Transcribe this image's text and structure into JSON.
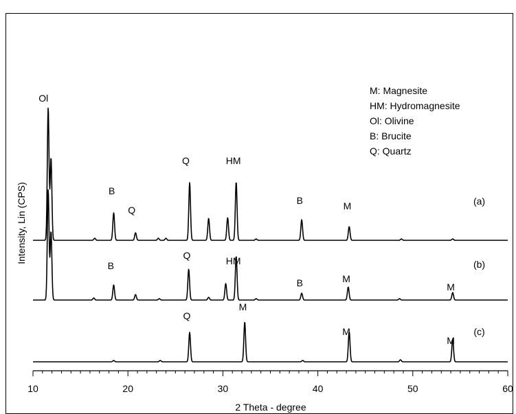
{
  "chart_data": {
    "type": "line",
    "xlabel": "2 Theta - degree",
    "ylabel": "Intensity, Lin (CPS)",
    "xlim": [
      10,
      60
    ],
    "x_ticks": [
      10,
      20,
      30,
      40,
      50,
      60
    ],
    "x_minor_step": 1,
    "y_ticks": "none",
    "grid": false,
    "legend_position": "top-right",
    "legend": [
      "M: Magnesite",
      "HM: Hydromagnesite",
      "Ol: Olivine",
      "B: Brucite",
      "Q: Quartz"
    ],
    "series": [
      {
        "name": "(a)",
        "peaks": [
          {
            "x": 11.6,
            "h": 193
          },
          {
            "x": 11.9,
            "h": 120
          },
          {
            "x": 16.5,
            "h": 3
          },
          {
            "x": 18.5,
            "h": 40
          },
          {
            "x": 20.8,
            "h": 11
          },
          {
            "x": 23.2,
            "h": 3
          },
          {
            "x": 24.0,
            "h": 3
          },
          {
            "x": 26.5,
            "h": 84
          },
          {
            "x": 28.5,
            "h": 32
          },
          {
            "x": 30.5,
            "h": 33
          },
          {
            "x": 31.4,
            "h": 85
          },
          {
            "x": 33.5,
            "h": 2
          },
          {
            "x": 38.3,
            "h": 30
          },
          {
            "x": 43.3,
            "h": 20
          },
          {
            "x": 48.8,
            "h": 2
          },
          {
            "x": 54.2,
            "h": 2
          }
        ]
      },
      {
        "name": "(b)",
        "peaks": [
          {
            "x": 11.6,
            "h": 161
          },
          {
            "x": 11.9,
            "h": 100
          },
          {
            "x": 16.4,
            "h": 3
          },
          {
            "x": 18.5,
            "h": 22
          },
          {
            "x": 20.8,
            "h": 8
          },
          {
            "x": 23.3,
            "h": 2
          },
          {
            "x": 26.4,
            "h": 45
          },
          {
            "x": 28.5,
            "h": 4
          },
          {
            "x": 30.3,
            "h": 24
          },
          {
            "x": 31.4,
            "h": 64
          },
          {
            "x": 33.5,
            "h": 2
          },
          {
            "x": 38.3,
            "h": 10
          },
          {
            "x": 43.2,
            "h": 19
          },
          {
            "x": 48.6,
            "h": 2
          },
          {
            "x": 54.2,
            "h": 11
          }
        ]
      },
      {
        "name": "(c)",
        "peaks": [
          {
            "x": 18.5,
            "h": 2
          },
          {
            "x": 23.4,
            "h": 2
          },
          {
            "x": 26.5,
            "h": 43
          },
          {
            "x": 32.3,
            "h": 58
          },
          {
            "x": 38.4,
            "h": 2
          },
          {
            "x": 43.3,
            "h": 44
          },
          {
            "x": 48.7,
            "h": 3
          },
          {
            "x": 54.2,
            "h": 33
          }
        ]
      }
    ],
    "annotations": [
      {
        "text": "Ol",
        "x": 11.1,
        "intensity_level": 392
      },
      {
        "text": "B",
        "x": 18.3,
        "intensity_level": 257
      },
      {
        "text": "Q",
        "x": 20.4,
        "intensity_level": 229
      },
      {
        "text": "Q",
        "x": 26.1,
        "intensity_level": 301
      },
      {
        "text": "HM",
        "x": 31.1,
        "intensity_level": 301
      },
      {
        "text": "B",
        "x": 38.1,
        "intensity_level": 243
      },
      {
        "text": "M",
        "x": 43.1,
        "intensity_level": 235
      },
      {
        "text": "(a)",
        "x": 57.0,
        "intensity_level": 242
      },
      {
        "text": "B",
        "x": 18.2,
        "intensity_level": 148
      },
      {
        "text": "Q",
        "x": 26.2,
        "intensity_level": 163
      },
      {
        "text": "HM",
        "x": 31.1,
        "intensity_level": 155
      },
      {
        "text": "B",
        "x": 38.1,
        "intensity_level": 123
      },
      {
        "text": "M",
        "x": 43.0,
        "intensity_level": 129
      },
      {
        "text": "M",
        "x": 54.0,
        "intensity_level": 117
      },
      {
        "text": "(b)",
        "x": 57.0,
        "intensity_level": 150
      },
      {
        "text": "Q",
        "x": 26.2,
        "intensity_level": 75
      },
      {
        "text": "M",
        "x": 32.1,
        "intensity_level": 88
      },
      {
        "text": "M",
        "x": 43.0,
        "intensity_level": 52
      },
      {
        "text": "M",
        "x": 54.0,
        "intensity_level": 39
      },
      {
        "text": "(c)",
        "x": 57.0,
        "intensity_level": 52
      }
    ],
    "colors": {
      "line": "#000000",
      "axis": "#000000",
      "frame": "#000000"
    }
  }
}
